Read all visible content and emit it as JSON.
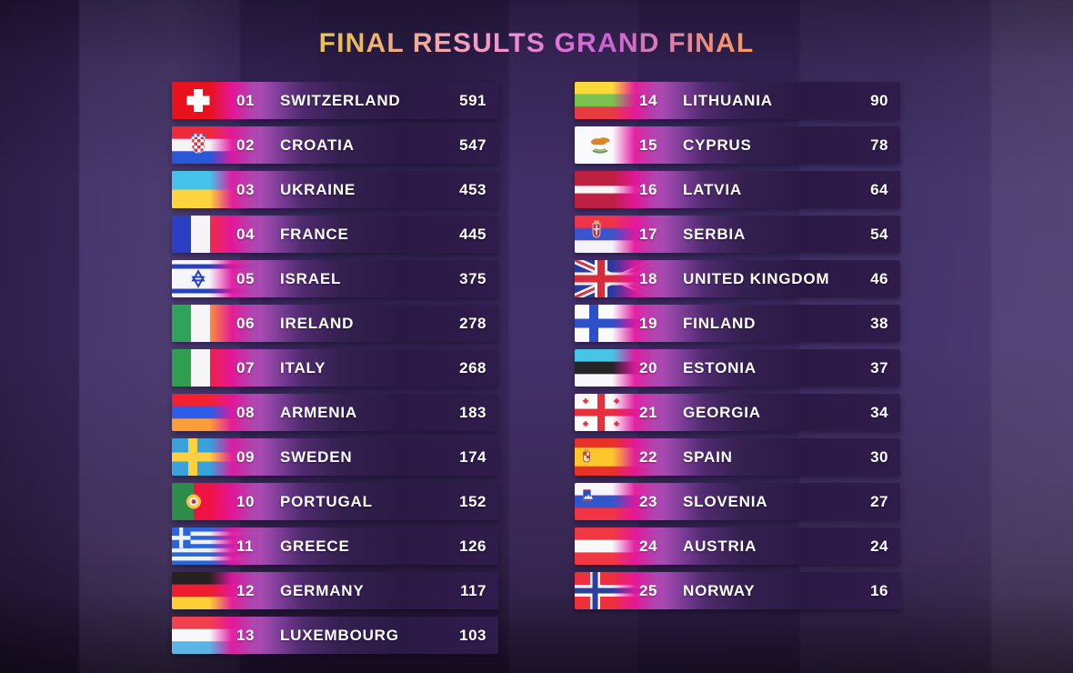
{
  "title": {
    "text": "FINAL RESULTS GRAND FINAL"
  },
  "results": {
    "left": [
      {
        "rank": "01",
        "country": "SWITZERLAND",
        "points": "591",
        "flag": "switzerland"
      },
      {
        "rank": "02",
        "country": "CROATIA",
        "points": "547",
        "flag": "croatia"
      },
      {
        "rank": "03",
        "country": "UKRAINE",
        "points": "453",
        "flag": "ukraine"
      },
      {
        "rank": "04",
        "country": "FRANCE",
        "points": "445",
        "flag": "france"
      },
      {
        "rank": "05",
        "country": "ISRAEL",
        "points": "375",
        "flag": "israel"
      },
      {
        "rank": "06",
        "country": "IRELAND",
        "points": "278",
        "flag": "ireland"
      },
      {
        "rank": "07",
        "country": "ITALY",
        "points": "268",
        "flag": "italy"
      },
      {
        "rank": "08",
        "country": "ARMENIA",
        "points": "183",
        "flag": "armenia"
      },
      {
        "rank": "09",
        "country": "SWEDEN",
        "points": "174",
        "flag": "sweden"
      },
      {
        "rank": "10",
        "country": "PORTUGAL",
        "points": "152",
        "flag": "portugal"
      },
      {
        "rank": "11",
        "country": "GREECE",
        "points": "126",
        "flag": "greece"
      },
      {
        "rank": "12",
        "country": "GERMANY",
        "points": "117",
        "flag": "germany"
      },
      {
        "rank": "13",
        "country": "LUXEMBOURG",
        "points": "103",
        "flag": "luxembourg"
      }
    ],
    "right": [
      {
        "rank": "14",
        "country": "LITHUANIA",
        "points": "90",
        "flag": "lithuania"
      },
      {
        "rank": "15",
        "country": "CYPRUS",
        "points": "78",
        "flag": "cyprus"
      },
      {
        "rank": "16",
        "country": "LATVIA",
        "points": "64",
        "flag": "latvia"
      },
      {
        "rank": "17",
        "country": "SERBIA",
        "points": "54",
        "flag": "serbia"
      },
      {
        "rank": "18",
        "country": "UNITED KINGDOM",
        "points": "46",
        "flag": "united-kingdom"
      },
      {
        "rank": "19",
        "country": "FINLAND",
        "points": "38",
        "flag": "finland"
      },
      {
        "rank": "20",
        "country": "ESTONIA",
        "points": "37",
        "flag": "estonia"
      },
      {
        "rank": "21",
        "country": "GEORGIA",
        "points": "34",
        "flag": "georgia"
      },
      {
        "rank": "22",
        "country": "SPAIN",
        "points": "30",
        "flag": "spain"
      },
      {
        "rank": "23",
        "country": "SLOVENIA",
        "points": "27",
        "flag": "slovenia"
      },
      {
        "rank": "24",
        "country": "AUSTRIA",
        "points": "24",
        "flag": "austria"
      },
      {
        "rank": "25",
        "country": "NORWAY",
        "points": "16",
        "flag": "norway"
      }
    ]
  },
  "colors": {
    "accent_magenta": "#e60d9c",
    "row_dark_purple": "#2b1945",
    "background_purple": "#3e2c66",
    "text": "#ffffff",
    "title_gradient": [
      "#e9c258",
      "#f3a4b4",
      "#dd74d8",
      "#f59c60"
    ]
  }
}
